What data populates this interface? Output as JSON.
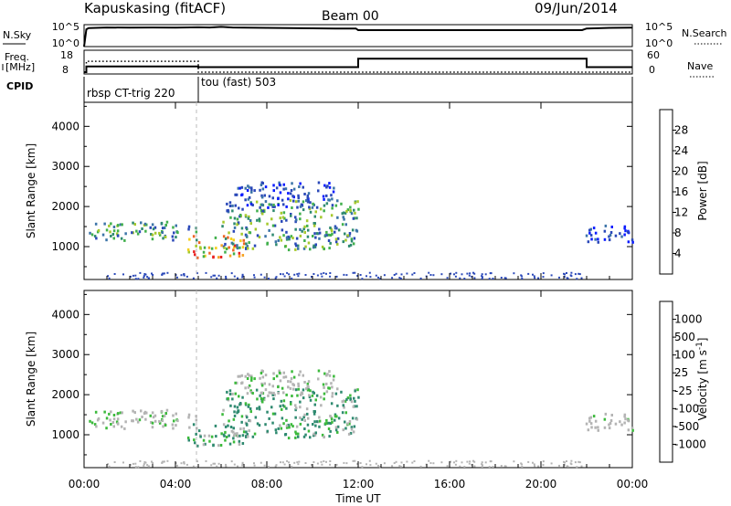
{
  "header": {
    "station": "Kapuskasing (fitACF)",
    "beam": "Beam 00",
    "date": "09/Jun/2014"
  },
  "panel_labels": {
    "nsky": "N.Sky",
    "nsearch": "N.Search",
    "freq_line1": "Freq.",
    "freq_line2": "[MHz]",
    "nave": "Nave",
    "cpid": "CPID"
  },
  "chart_data": {
    "type": "heatmap",
    "xlabel": "Time UT",
    "x_ticks": [
      "00:00",
      "04:00",
      "08:00",
      "12:00",
      "16:00",
      "20:00",
      "00:00"
    ],
    "x_range_hours": [
      0,
      24
    ],
    "noise_panel": {
      "left_ticks": [
        "10^5",
        "10^0"
      ],
      "right_ticks": [
        "10^5",
        "10^0"
      ],
      "series": [
        {
          "t": [
            0.0,
            0.1,
            0.2,
            1,
            2,
            3,
            4,
            5,
            5.5,
            6,
            6.5,
            7,
            8,
            9,
            10,
            11,
            11.9,
            12,
            14,
            16,
            18,
            20,
            21.8,
            22,
            23,
            24
          ],
          "level": [
            0.0,
            0.86,
            0.92,
            0.95,
            0.94,
            0.95,
            0.94,
            0.96,
            0.95,
            0.98,
            0.95,
            0.94,
            0.93,
            0.92,
            0.91,
            0.9,
            0.9,
            0.82,
            0.82,
            0.82,
            0.82,
            0.82,
            0.82,
            0.9,
            0.93,
            0.94
          ]
        }
      ]
    },
    "freq_panel": {
      "left_ticks": [
        "18",
        "8"
      ],
      "right_ticks": [
        "60",
        "0"
      ],
      "freq_mhz": {
        "t": [
          0,
          0.1,
          0.1,
          5.0,
          5.0,
          12.0,
          12.0,
          22.0,
          22.0,
          24.0
        ],
        "v": [
          8,
          8,
          11,
          11,
          10.6,
          10.6,
          15,
          15,
          10.6,
          10.6
        ]
      },
      "nave": {
        "t": [
          0,
          0.1,
          0.1,
          5.0,
          5.0,
          24.0
        ],
        "v": [
          0,
          0,
          34,
          34,
          0,
          0
        ]
      }
    },
    "cpid_segments": [
      {
        "label": "rbsp CT-trig 220",
        "start": 0,
        "end": 5.0
      },
      {
        "label": "tou (fast) 503",
        "start": 5.0,
        "end": 24
      }
    ],
    "power_panel": {
      "ylabel": "Slant Range [km]",
      "y_ticks": [
        1000,
        2000,
        3000,
        4000
      ],
      "y_range_km": [
        180,
        4600
      ],
      "colorbar_label": "Power [dB]",
      "colorbar_ticks": [
        "28",
        "24",
        "20",
        "16",
        "12",
        "8",
        "4"
      ],
      "colorbar_colors": [
        "#0a1cff",
        "#2a48b8",
        "#3c74a8",
        "#2f8a70",
        "#41b04c",
        "#a6c92c",
        "#f4d020",
        "#f6a428",
        "#ee6424",
        "#e82222"
      ]
    },
    "velocity_panel": {
      "ylabel": "Slant Range [km]",
      "y_ticks": [
        1000,
        2000,
        3000,
        4000
      ],
      "y_range_km": [
        180,
        4600
      ],
      "colorbar_label": "Velocity [m s^-1]",
      "colorbar_ticks": [
        "1000",
        "500",
        "100",
        "25",
        "-25",
        "-100",
        "-500",
        "-1000"
      ],
      "colorbar_colors": [
        "#1a2ec8",
        "#2868a8",
        "#2f8a70",
        "#3cba3c",
        "#b4b4b4",
        "#f0c020",
        "#f08a20",
        "#ee4f22",
        "#e81a1a"
      ]
    },
    "scatter_regions": [
      {
        "t0": 0.0,
        "t1": 5.0,
        "r0": 1180,
        "r1": 1650,
        "power": "mid",
        "velocity": "gray"
      },
      {
        "t0": 4.5,
        "t1": 7.0,
        "r0": 750,
        "r1": 1300,
        "power": "high",
        "velocity": "green"
      },
      {
        "t0": 6.0,
        "t1": 12.0,
        "r0": 950,
        "r1": 2200,
        "power": "mid",
        "velocity": "green"
      },
      {
        "t0": 6.5,
        "t1": 11.0,
        "r0": 2000,
        "r1": 2650,
        "power": "low",
        "velocity": "gray"
      },
      {
        "t0": 21.8,
        "t1": 24.0,
        "r0": 1100,
        "r1": 1550,
        "power": "low",
        "velocity": "gray"
      }
    ],
    "grid": false
  }
}
